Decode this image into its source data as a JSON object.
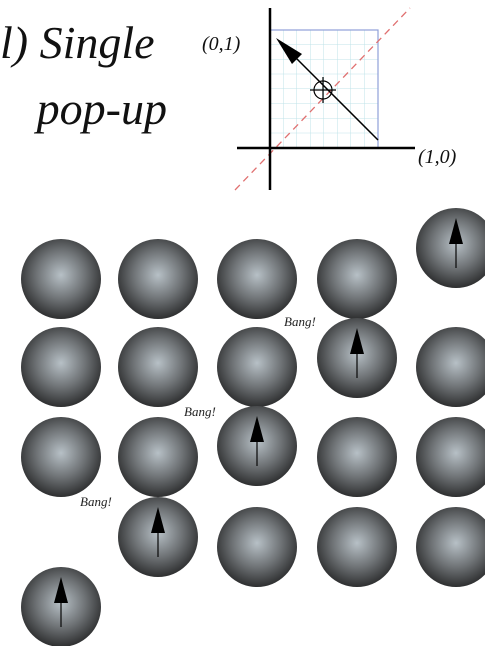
{
  "title": {
    "line1": "l) Single",
    "line2": "pop-up"
  },
  "axes": {
    "top_label": "(0,1)",
    "right_label": "(1,0)"
  },
  "bangs": [
    "Bang!",
    "Bang!",
    "Bang!"
  ]
}
